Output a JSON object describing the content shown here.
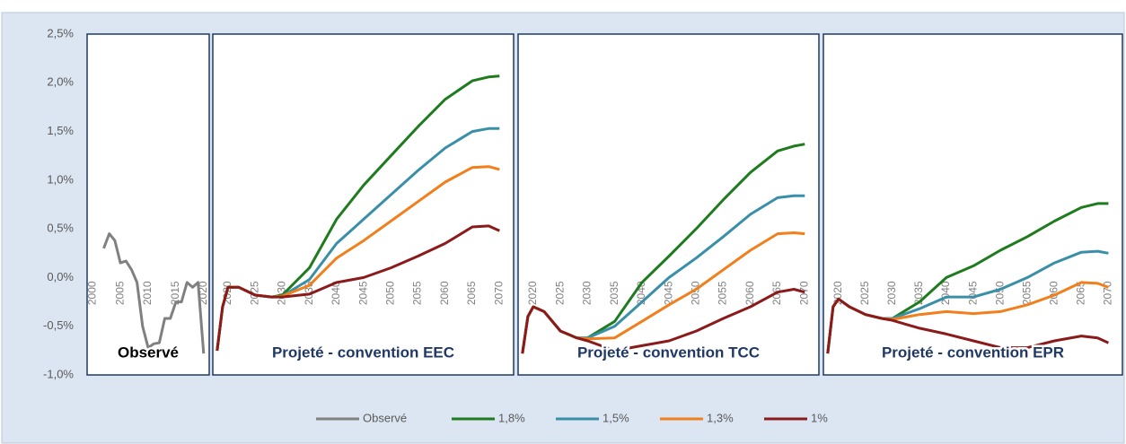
{
  "chart_data": [
    {
      "type": "line",
      "title": "Observé",
      "xlim": [
        1999,
        2021
      ],
      "ylim": [
        -1.0,
        2.5
      ],
      "yticks": [
        {
          "value": 2.5,
          "label": "2,5%"
        },
        {
          "value": 2.0,
          "label": "2,0%"
        },
        {
          "value": 1.5,
          "label": "1,5%"
        },
        {
          "value": 1.0,
          "label": "1,0%"
        },
        {
          "value": 0.5,
          "label": "0,5%"
        },
        {
          "value": 0.0,
          "label": "0,0%"
        },
        {
          "value": -0.5,
          "label": "-0,5%"
        },
        {
          "value": -1.0,
          "label": "-1,0%"
        }
      ],
      "xticks": [
        2000,
        2005,
        2010,
        2015,
        2020
      ],
      "x": [
        2002,
        2003,
        2004,
        2005,
        2006,
        2007,
        2008,
        2009,
        2010,
        2011,
        2012,
        2013,
        2014,
        2015,
        2016,
        2017,
        2018,
        2019,
        2020
      ],
      "series": [
        {
          "name": "Observé",
          "color": "#808080",
          "values": [
            0.3,
            0.45,
            0.38,
            0.15,
            0.17,
            0.08,
            -0.05,
            -0.5,
            -0.72,
            -0.68,
            -0.67,
            -0.42,
            -0.42,
            -0.25,
            -0.25,
            -0.05,
            -0.1,
            -0.05,
            -0.78
          ]
        }
      ]
    },
    {
      "type": "line",
      "title": "Projeté - convention EEC",
      "xlim": [
        2017.2,
        2072.6
      ],
      "ylim": [
        -1.0,
        2.5
      ],
      "xticks": [
        2020,
        2025,
        2030,
        2035,
        2040,
        2045,
        2050,
        2055,
        2060,
        2065,
        2070
      ],
      "x": [
        2018,
        2019,
        2020,
        2022,
        2025,
        2028,
        2030,
        2035,
        2040,
        2045,
        2050,
        2055,
        2060,
        2065,
        2068,
        2070
      ],
      "series": [
        {
          "name": "1,8%",
          "color": "#1e7b1e",
          "values": [
            -0.75,
            -0.3,
            -0.1,
            -0.1,
            -0.18,
            -0.2,
            -0.18,
            0.1,
            0.6,
            0.95,
            1.25,
            1.55,
            1.83,
            2.02,
            2.06,
            2.07
          ]
        },
        {
          "name": "1,5%",
          "color": "#3a8fa8",
          "values": [
            -0.75,
            -0.3,
            -0.1,
            -0.1,
            -0.18,
            -0.2,
            -0.19,
            -0.02,
            0.35,
            0.6,
            0.85,
            1.1,
            1.33,
            1.5,
            1.53,
            1.53
          ]
        },
        {
          "name": "1,3%",
          "color": "#f07f1c",
          "values": [
            -0.75,
            -0.3,
            -0.1,
            -0.1,
            -0.18,
            -0.2,
            -0.19,
            -0.08,
            0.2,
            0.38,
            0.58,
            0.78,
            0.98,
            1.13,
            1.14,
            1.11
          ]
        },
        {
          "name": "1%",
          "color": "#8b1a1a",
          "values": [
            -0.75,
            -0.3,
            -0.1,
            -0.1,
            -0.18,
            -0.2,
            -0.2,
            -0.17,
            -0.05,
            0.0,
            0.1,
            0.22,
            0.35,
            0.52,
            0.53,
            0.48
          ]
        }
      ]
    },
    {
      "type": "line",
      "title": "Projeté - convention TCC",
      "xlim": [
        2017.2,
        2072.6
      ],
      "ylim": [
        -1.0,
        2.5
      ],
      "xticks": [
        2020,
        2025,
        2030,
        2035,
        2040,
        2045,
        2050,
        2055,
        2060,
        2065,
        2070
      ],
      "x": [
        2018,
        2019,
        2020,
        2022,
        2025,
        2028,
        2030,
        2035,
        2040,
        2045,
        2050,
        2055,
        2060,
        2065,
        2068,
        2070
      ],
      "series": [
        {
          "name": "1,8%",
          "color": "#1e7b1e",
          "values": [
            -0.78,
            -0.4,
            -0.3,
            -0.35,
            -0.55,
            -0.62,
            -0.62,
            -0.45,
            -0.05,
            0.22,
            0.5,
            0.8,
            1.08,
            1.3,
            1.35,
            1.37
          ]
        },
        {
          "name": "1,5%",
          "color": "#3a8fa8",
          "values": [
            -0.78,
            -0.4,
            -0.3,
            -0.35,
            -0.55,
            -0.62,
            -0.62,
            -0.5,
            -0.25,
            0.0,
            0.2,
            0.42,
            0.65,
            0.82,
            0.84,
            0.84
          ]
        },
        {
          "name": "1,3%",
          "color": "#f07f1c",
          "values": [
            -0.78,
            -0.4,
            -0.3,
            -0.35,
            -0.55,
            -0.62,
            -0.63,
            -0.62,
            -0.45,
            -0.28,
            -0.12,
            0.08,
            0.28,
            0.45,
            0.46,
            0.45
          ]
        },
        {
          "name": "1%",
          "color": "#8b1a1a",
          "values": [
            -0.78,
            -0.4,
            -0.3,
            -0.35,
            -0.55,
            -0.62,
            -0.65,
            -0.75,
            -0.7,
            -0.65,
            -0.55,
            -0.42,
            -0.3,
            -0.15,
            -0.12,
            -0.15
          ]
        }
      ]
    },
    {
      "type": "line",
      "title": "Projeté - convention EPR",
      "xlim": [
        2017.2,
        2072.6
      ],
      "ylim": [
        -1.0,
        2.5
      ],
      "xticks": [
        2020,
        2025,
        2030,
        2035,
        2040,
        2045,
        2050,
        2055,
        2060,
        2065,
        2070
      ],
      "x": [
        2018,
        2019,
        2020,
        2022,
        2025,
        2028,
        2030,
        2035,
        2040,
        2045,
        2050,
        2055,
        2060,
        2065,
        2068,
        2070
      ],
      "series": [
        {
          "name": "1,8%",
          "color": "#1e7b1e",
          "values": [
            -0.78,
            -0.3,
            -0.22,
            -0.3,
            -0.38,
            -0.42,
            -0.42,
            -0.25,
            0.0,
            0.12,
            0.28,
            0.42,
            0.58,
            0.72,
            0.76,
            0.76
          ]
        },
        {
          "name": "1,5%",
          "color": "#3a8fa8",
          "values": [
            -0.78,
            -0.3,
            -0.22,
            -0.3,
            -0.38,
            -0.42,
            -0.42,
            -0.32,
            -0.2,
            -0.2,
            -0.12,
            0.0,
            0.15,
            0.26,
            0.27,
            0.25
          ]
        },
        {
          "name": "1,3%",
          "color": "#f07f1c",
          "values": [
            -0.78,
            -0.3,
            -0.22,
            -0.3,
            -0.38,
            -0.42,
            -0.43,
            -0.38,
            -0.35,
            -0.37,
            -0.35,
            -0.28,
            -0.18,
            -0.05,
            -0.06,
            -0.1
          ]
        },
        {
          "name": "1%",
          "color": "#8b1a1a",
          "values": [
            -0.78,
            -0.3,
            -0.22,
            -0.3,
            -0.38,
            -0.42,
            -0.44,
            -0.52,
            -0.58,
            -0.65,
            -0.72,
            -0.72,
            -0.65,
            -0.6,
            -0.62,
            -0.67
          ]
        }
      ]
    }
  ]
}
